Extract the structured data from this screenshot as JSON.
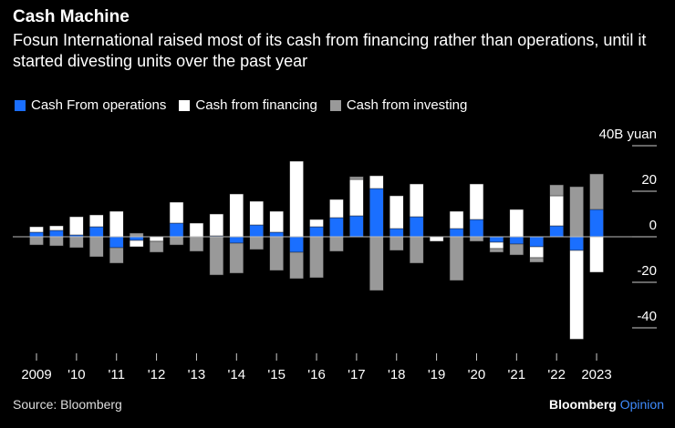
{
  "title": "Cash Machine",
  "subtitle": "Fosun International raised most of its cash from financing rather than operations, until it started divesting units over the past year",
  "source": "Source: Bloomberg",
  "brand": {
    "name": "Bloomberg",
    "suffix": "Opinion"
  },
  "chart_data": {
    "type": "bar",
    "stacked": true,
    "unit_label": "40B yuan",
    "ylim": [
      -48,
      42
    ],
    "yticks": [
      40,
      20,
      0,
      -20,
      -40
    ],
    "ytick_labels": [
      "40B yuan",
      "20",
      "0",
      "-20",
      "-40"
    ],
    "xtick_labels": [
      "2009",
      "'10",
      "'11",
      "'12",
      "'13",
      "'14",
      "'15",
      "'16",
      "'17",
      "'18",
      "'19",
      "'20",
      "'21",
      "'22",
      "2023"
    ],
    "categories": [
      "2009H1",
      "2009H2",
      "2010H1",
      "2010H2",
      "2011H1",
      "2011H2",
      "2012H1",
      "2012H2",
      "2013H1",
      "2013H2",
      "2014H1",
      "2014H2",
      "2015H1",
      "2015H2",
      "2016H1",
      "2016H2",
      "2017H1",
      "2017H2",
      "2018H1",
      "2018H2",
      "2019H1",
      "2019H2",
      "2020H1",
      "2020H2",
      "2021H1",
      "2021H2",
      "2022H1",
      "2022H2",
      "2023H1"
    ],
    "series": [
      {
        "name": "Cash From operations",
        "color": "#1a6fff",
        "values": [
          2,
          2.8,
          0.8,
          4.4,
          -4.8,
          -1.6,
          0,
          6,
          0,
          0.4,
          -2.8,
          5.2,
          2,
          -6.8,
          4.4,
          8.4,
          9.2,
          21.2,
          3.6,
          8.8,
          0,
          3.6,
          7.6,
          -2.4,
          -3.2,
          -4.4,
          4.8,
          -6,
          12
        ]
      },
      {
        "name": "Cash from financing",
        "color": "#ffffff",
        "values": [
          2.4,
          2,
          8,
          5.2,
          11.2,
          -2.8,
          -2,
          9.2,
          6,
          9.6,
          18.8,
          10.4,
          9.2,
          33.2,
          3.2,
          8,
          16,
          5.6,
          14.4,
          14.4,
          -2,
          7.6,
          15.6,
          -2.8,
          12,
          -4.8,
          13.2,
          -39,
          -15.6
        ]
      },
      {
        "name": "Cash from investing",
        "color": "#999999",
        "values": [
          -3.6,
          -4,
          -4.8,
          -8.8,
          -6.8,
          1.6,
          -4.8,
          -3.6,
          -6.4,
          -16.8,
          -13.2,
          -5.6,
          -14.8,
          -11.6,
          -18,
          -6.4,
          1.2,
          -23.6,
          -6,
          -11.6,
          0,
          -19.2,
          -2,
          -1.6,
          -4.8,
          -2,
          4.8,
          22,
          15.6
        ]
      }
    ],
    "legend_position": "top-left",
    "grid": false
  }
}
